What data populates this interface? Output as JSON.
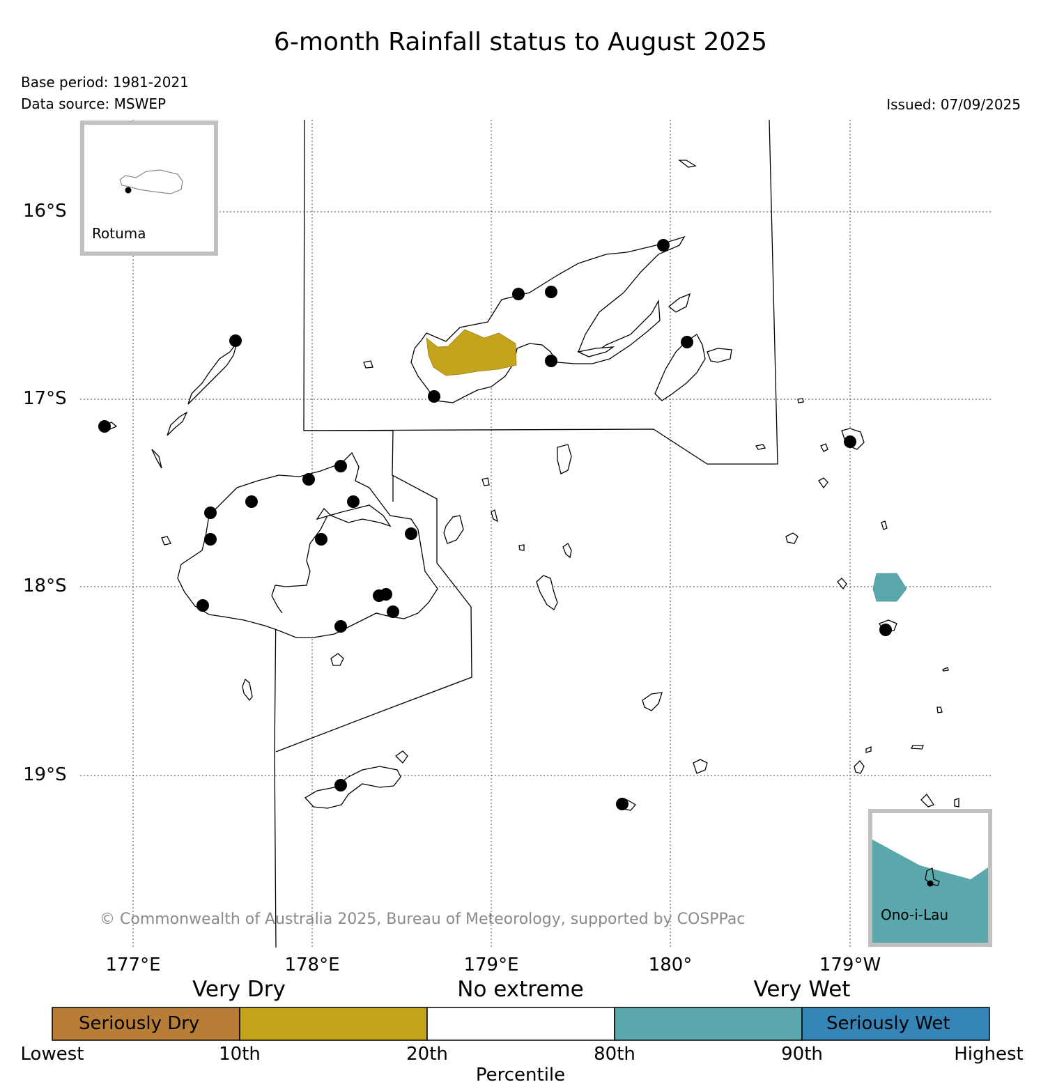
{
  "title": "6-month Rainfall status to August 2025",
  "base_period": "Base period: 1981-2021",
  "data_source": "Data source: MSWEP",
  "issued": "Issued: 07/09/2025",
  "credit": "© Commonwealth of Australia 2025, Bureau of Meteorology, supported by COSPPac",
  "axes": {
    "lat_ticks": [
      "16°S",
      "17°S",
      "18°S",
      "19°S"
    ],
    "lon_ticks": [
      "177°E",
      "178°E",
      "179°E",
      "180°",
      "179°W"
    ]
  },
  "insets": {
    "rotuma": "Rotuma",
    "ono_i_lau": "Ono-i-Lau"
  },
  "legend": {
    "categories": [
      "Very Dry",
      "No extreme",
      "Very Wet"
    ],
    "segments": [
      {
        "label": "Seriously Dry",
        "color": "#b87e38"
      },
      {
        "label": "",
        "color": "#c4a41c"
      },
      {
        "label": "",
        "color": "#ffffff"
      },
      {
        "label": "",
        "color": "#5ba8ac"
      },
      {
        "label": "Seriously Wet",
        "color": "#3685b8"
      }
    ],
    "percentiles": [
      "Lowest",
      "10th",
      "20th",
      "80th",
      "90th",
      "Highest"
    ],
    "axis_label": "Percentile"
  },
  "colors": {
    "very_dry": "#c4a41c",
    "very_wet": "#5ba8ac",
    "inset_border": "#c0c0c0"
  },
  "icons": {
    "station": "station-dot-icon"
  }
}
